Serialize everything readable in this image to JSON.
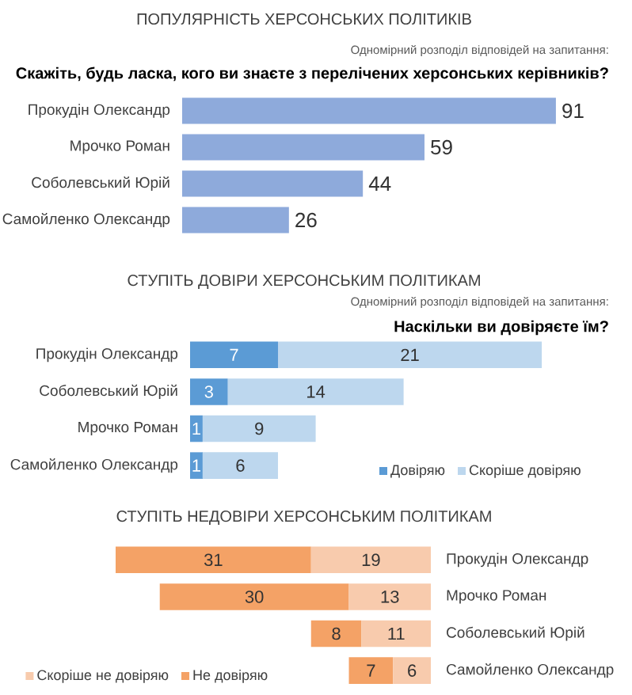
{
  "chart_data": [
    {
      "type": "bar",
      "orientation": "horizontal",
      "title": "ПОПУЛЯРНІСТЬ ХЕРСОНСЬКИХ ПОЛІТИКІВ",
      "subtitle": "Скажіть, будь ласка, кого ви знаєте з перелічених херсонських керівників?",
      "annotations": [
        "Одномірний розподіл відповідей на запитання:"
      ],
      "categories": [
        "Прокудін Олександр",
        "Мрочко Роман",
        "Соболевський Юрій",
        "Самойленко Олександр"
      ],
      "values": [
        91,
        59,
        44,
        26
      ],
      "color": "#8eaadb",
      "data_labels": true,
      "tick_labels": "y"
    },
    {
      "type": "bar",
      "orientation": "horizontal",
      "stacked": true,
      "title": "СТУПІТЬ ДОВІРИ ХЕРСОНСЬКИМ ПОЛІТИКАМ",
      "subtitle": "Наскільки ви довіряєте їм?",
      "annotations": [
        "Одномірний розподіл відповідей на запитання:"
      ],
      "categories": [
        "Прокудін Олександр",
        "Соболевський Юрій",
        "Мрочко Роман",
        "Самойленко Олександр"
      ],
      "series": [
        {
          "name": "Довіряю",
          "color": "#5b9bd5",
          "values": [
            7,
            3,
            1,
            1
          ]
        },
        {
          "name": "Скоріше довіряю",
          "color": "#bdd7ee",
          "values": [
            21,
            14,
            9,
            6
          ]
        }
      ],
      "data_labels": true,
      "legend": "bottom right",
      "tick_labels": "y"
    },
    {
      "type": "bar",
      "orientation": "horizontal",
      "stacked": true,
      "title": "СТУПІТЬ НЕДОВІРИ ХЕРСОНСЬКИМ ПОЛІТИКАМ",
      "categories": [
        "Прокудін Олександр",
        "Мрочко Роман",
        "Соболевський Юрій",
        "Самойленко Олександр"
      ],
      "series": [
        {
          "name": "Скоріше не довіряю",
          "color": "#f8cbad",
          "values": [
            19,
            13,
            11,
            6
          ]
        },
        {
          "name": "Не довіряю",
          "color": "#f4a266",
          "values": [
            31,
            30,
            8,
            7
          ]
        }
      ],
      "data_labels": true,
      "legend": "bottom left",
      "tick_labels": "y"
    }
  ]
}
